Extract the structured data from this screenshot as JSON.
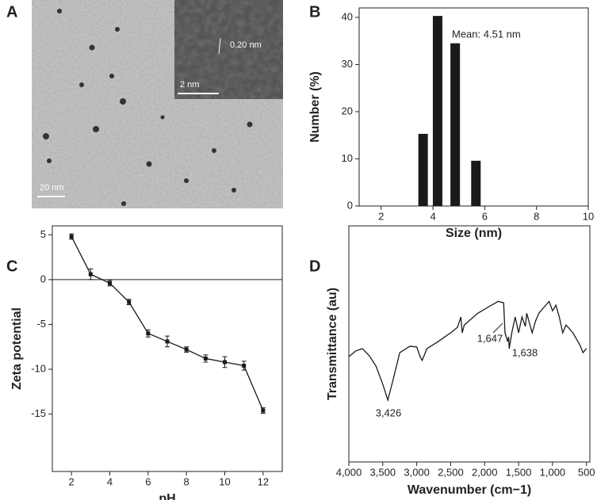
{
  "chart_data": [
    {
      "type": "image",
      "panel_label": "A",
      "annotations": [
        "20 nm",
        "2 nm",
        "0.20 nm"
      ]
    },
    {
      "type": "bar",
      "panel_label": "B",
      "xlabel": "Size (nm)",
      "ylabel": "Number (%)",
      "annotation": "Mean: 4.51 nm",
      "x": [
        3.62,
        4.18,
        4.86,
        5.66
      ],
      "values": [
        15.3,
        40.3,
        34.5,
        9.6
      ],
      "color": "#1a1a1a",
      "xlim": [
        1.15,
        10
      ],
      "ylim": [
        0,
        42
      ],
      "xticks": [
        2,
        4,
        6,
        8,
        10
      ],
      "yticks": [
        0,
        10,
        20,
        30,
        40
      ]
    },
    {
      "type": "line",
      "panel_label": "C",
      "xlabel": "pH",
      "ylabel": "Zeta potential",
      "x": [
        2,
        3,
        4,
        5,
        6,
        7,
        8,
        9,
        10,
        11,
        12
      ],
      "values": [
        4.8,
        0.6,
        -0.4,
        -2.5,
        -6.0,
        -6.9,
        -7.8,
        -8.8,
        -9.2,
        -9.6,
        -14.6
      ],
      "errors": [
        0.3,
        0.6,
        0.3,
        0.3,
        0.4,
        0.6,
        0.3,
        0.4,
        0.6,
        0.5,
        0.3
      ],
      "color": "#1a1a1a",
      "markers": true,
      "zero_line": true,
      "xlim": [
        1,
        13
      ],
      "ylim": [
        -21.4,
        6
      ],
      "xticks": [
        2,
        4,
        6,
        8,
        10,
        12
      ],
      "yticks": [
        5,
        0,
        -5,
        -10,
        -15
      ]
    },
    {
      "type": "line",
      "panel_label": "D",
      "xlabel": "Wavenumber (cm−1)",
      "ylabel": "Transmittance (au)",
      "annotations": [
        "3,426",
        "1,647",
        "1,638"
      ],
      "x": [
        4000,
        3900,
        3800,
        3700,
        3600,
        3500,
        3426,
        3350,
        3250,
        3100,
        3000,
        2950,
        2920,
        2850,
        2700,
        2500,
        2400,
        2350,
        2330,
        2300,
        2100,
        1900,
        1800,
        1720,
        1700,
        1660,
        1647,
        1638,
        1600,
        1550,
        1500,
        1450,
        1400,
        1380,
        1300,
        1250,
        1200,
        1100,
        1050,
        1000,
        950,
        900,
        850,
        800,
        700,
        600,
        550,
        500
      ],
      "values": [
        44.6,
        47,
        48,
        45,
        40.6,
        32.9,
        26.2,
        34.6,
        46.3,
        49,
        48.7,
        44.6,
        43,
        48,
        50.7,
        54.7,
        57,
        61.4,
        54.7,
        58,
        63,
        66.4,
        68,
        67.4,
        54.7,
        51,
        53,
        48,
        54.7,
        61.4,
        54.7,
        61.4,
        57.4,
        63,
        54.7,
        59.7,
        63,
        66.4,
        68,
        64,
        66.4,
        61.4,
        54.7,
        58,
        54.7,
        49.7,
        46.3,
        48
      ],
      "color": "#1a1a1a",
      "markers": false,
      "zero_line": false,
      "xlim": [
        4000,
        450
      ],
      "ylim": [
        0,
        100
      ],
      "xticks": [
        {
          "value": 4000,
          "label": "4,000"
        },
        {
          "value": 3500,
          "label": "3,500"
        },
        {
          "value": 3000,
          "label": "3,000"
        },
        {
          "value": 2500,
          "label": "2,500"
        },
        {
          "value": 2000,
          "label": "2,000"
        },
        {
          "value": 1500,
          "label": "1,500"
        },
        {
          "value": 1000,
          "label": "1,000"
        },
        500
      ]
    }
  ]
}
